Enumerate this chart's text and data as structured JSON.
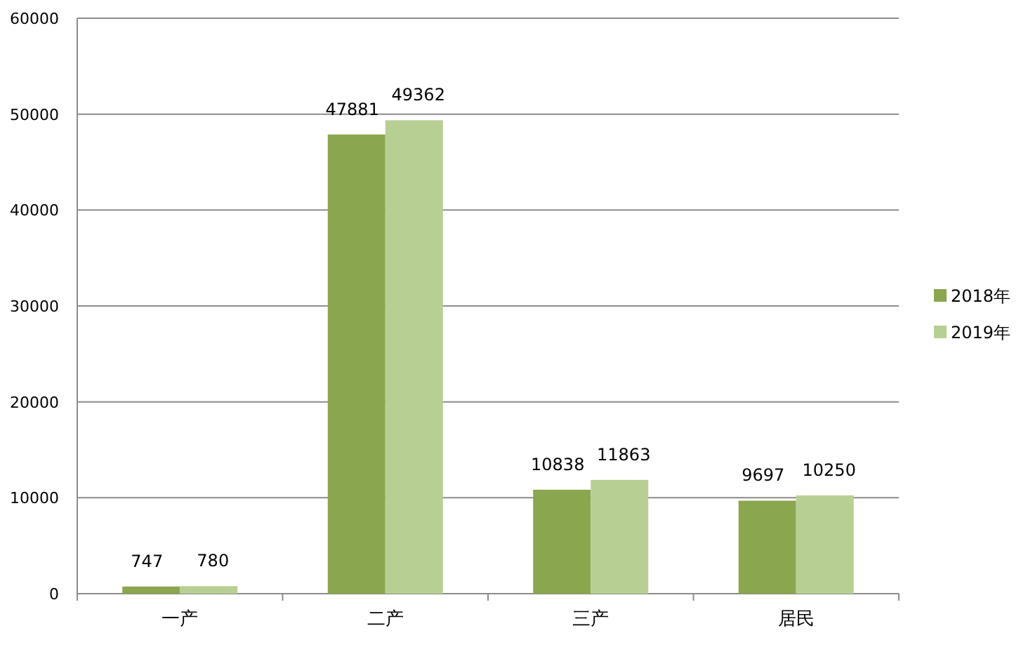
{
  "chart_data": {
    "type": "bar",
    "categories": [
      "一产",
      "二产",
      "三产",
      "居民"
    ],
    "series": [
      {
        "name": "2018年",
        "color": "#8aa64f",
        "values": [
          747,
          47881,
          10838,
          9697
        ]
      },
      {
        "name": "2019年",
        "color": "#b8cf94",
        "values": [
          780,
          49362,
          11863,
          10250
        ]
      }
    ],
    "ylim": [
      0,
      60000
    ],
    "yticks": [
      0,
      10000,
      20000,
      30000,
      40000,
      50000,
      60000
    ],
    "grid": "y",
    "legend": "right",
    "data_labels": true
  }
}
